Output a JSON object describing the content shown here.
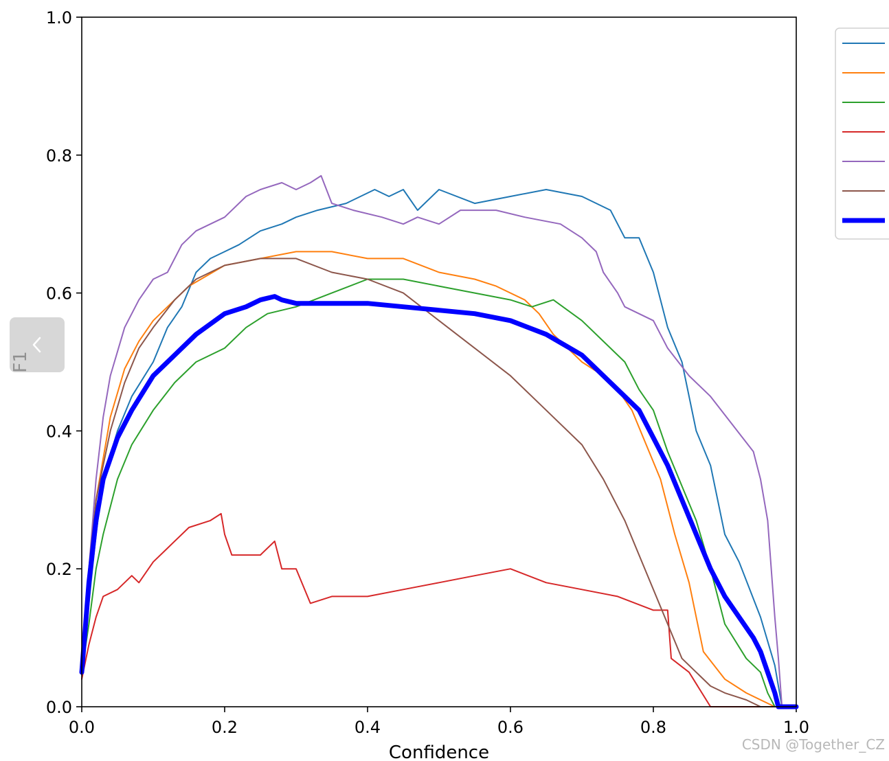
{
  "chart_data": {
    "type": "line",
    "title": "",
    "xlabel": "Confidence",
    "ylabel": "F1",
    "xlim": [
      0,
      1
    ],
    "ylim": [
      0,
      1
    ],
    "xticks": [
      "0.0",
      "0.2",
      "0.4",
      "0.6",
      "0.8",
      "1.0"
    ],
    "yticks": [
      "0.0",
      "0.2",
      "0.4",
      "0.6",
      "0.8",
      "1.0"
    ],
    "grid": false,
    "legend": "right, outside plot, partially cropped",
    "series": [
      {
        "color": "#1f77b4",
        "width": 2,
        "points": [
          [
            0,
            0.05
          ],
          [
            0.01,
            0.15
          ],
          [
            0.02,
            0.25
          ],
          [
            0.03,
            0.33
          ],
          [
            0.05,
            0.4
          ],
          [
            0.07,
            0.45
          ],
          [
            0.1,
            0.5
          ],
          [
            0.12,
            0.55
          ],
          [
            0.14,
            0.58
          ],
          [
            0.16,
            0.63
          ],
          [
            0.18,
            0.65
          ],
          [
            0.2,
            0.66
          ],
          [
            0.22,
            0.67
          ],
          [
            0.25,
            0.69
          ],
          [
            0.28,
            0.7
          ],
          [
            0.3,
            0.71
          ],
          [
            0.33,
            0.72
          ],
          [
            0.37,
            0.73
          ],
          [
            0.41,
            0.75
          ],
          [
            0.43,
            0.74
          ],
          [
            0.45,
            0.75
          ],
          [
            0.47,
            0.72
          ],
          [
            0.5,
            0.75
          ],
          [
            0.55,
            0.73
          ],
          [
            0.6,
            0.74
          ],
          [
            0.65,
            0.75
          ],
          [
            0.7,
            0.74
          ],
          [
            0.74,
            0.72
          ],
          [
            0.76,
            0.68
          ],
          [
            0.78,
            0.68
          ],
          [
            0.8,
            0.63
          ],
          [
            0.82,
            0.55
          ],
          [
            0.84,
            0.5
          ],
          [
            0.86,
            0.4
          ],
          [
            0.88,
            0.35
          ],
          [
            0.9,
            0.25
          ],
          [
            0.92,
            0.21
          ],
          [
            0.95,
            0.13
          ],
          [
            0.97,
            0.06
          ],
          [
            0.98,
            0
          ],
          [
            1,
            0
          ]
        ]
      },
      {
        "color": "#ff7f0e",
        "width": 2,
        "points": [
          [
            0,
            0.05
          ],
          [
            0.01,
            0.18
          ],
          [
            0.02,
            0.3
          ],
          [
            0.04,
            0.42
          ],
          [
            0.06,
            0.49
          ],
          [
            0.08,
            0.53
          ],
          [
            0.1,
            0.56
          ],
          [
            0.12,
            0.58
          ],
          [
            0.15,
            0.61
          ],
          [
            0.2,
            0.64
          ],
          [
            0.25,
            0.65
          ],
          [
            0.3,
            0.66
          ],
          [
            0.35,
            0.66
          ],
          [
            0.4,
            0.65
          ],
          [
            0.45,
            0.65
          ],
          [
            0.5,
            0.63
          ],
          [
            0.55,
            0.62
          ],
          [
            0.58,
            0.61
          ],
          [
            0.62,
            0.59
          ],
          [
            0.64,
            0.57
          ],
          [
            0.66,
            0.54
          ],
          [
            0.7,
            0.5
          ],
          [
            0.73,
            0.48
          ],
          [
            0.75,
            0.46
          ],
          [
            0.77,
            0.43
          ],
          [
            0.79,
            0.38
          ],
          [
            0.81,
            0.33
          ],
          [
            0.83,
            0.25
          ],
          [
            0.85,
            0.18
          ],
          [
            0.87,
            0.08
          ],
          [
            0.9,
            0.04
          ],
          [
            0.93,
            0.02
          ],
          [
            0.95,
            0.01
          ],
          [
            0.97,
            0
          ],
          [
            1,
            0
          ]
        ]
      },
      {
        "color": "#2ca02c",
        "width": 2,
        "points": [
          [
            0,
            0.05
          ],
          [
            0.01,
            0.12
          ],
          [
            0.02,
            0.2
          ],
          [
            0.03,
            0.25
          ],
          [
            0.05,
            0.33
          ],
          [
            0.07,
            0.38
          ],
          [
            0.1,
            0.43
          ],
          [
            0.13,
            0.47
          ],
          [
            0.16,
            0.5
          ],
          [
            0.2,
            0.52
          ],
          [
            0.23,
            0.55
          ],
          [
            0.26,
            0.57
          ],
          [
            0.3,
            0.58
          ],
          [
            0.35,
            0.6
          ],
          [
            0.4,
            0.62
          ],
          [
            0.45,
            0.62
          ],
          [
            0.5,
            0.61
          ],
          [
            0.55,
            0.6
          ],
          [
            0.6,
            0.59
          ],
          [
            0.63,
            0.58
          ],
          [
            0.66,
            0.59
          ],
          [
            0.7,
            0.56
          ],
          [
            0.73,
            0.53
          ],
          [
            0.76,
            0.5
          ],
          [
            0.78,
            0.46
          ],
          [
            0.8,
            0.43
          ],
          [
            0.82,
            0.37
          ],
          [
            0.84,
            0.32
          ],
          [
            0.86,
            0.27
          ],
          [
            0.88,
            0.2
          ],
          [
            0.9,
            0.12
          ],
          [
            0.93,
            0.07
          ],
          [
            0.95,
            0.05
          ],
          [
            0.96,
            0.02
          ],
          [
            0.97,
            0
          ],
          [
            1,
            0
          ]
        ]
      },
      {
        "color": "#d62728",
        "width": 2,
        "points": [
          [
            0,
            0.04
          ],
          [
            0.01,
            0.09
          ],
          [
            0.02,
            0.13
          ],
          [
            0.03,
            0.16
          ],
          [
            0.05,
            0.17
          ],
          [
            0.07,
            0.19
          ],
          [
            0.08,
            0.18
          ],
          [
            0.1,
            0.21
          ],
          [
            0.12,
            0.23
          ],
          [
            0.15,
            0.26
          ],
          [
            0.18,
            0.27
          ],
          [
            0.195,
            0.28
          ],
          [
            0.2,
            0.25
          ],
          [
            0.21,
            0.22
          ],
          [
            0.22,
            0.22
          ],
          [
            0.25,
            0.22
          ],
          [
            0.27,
            0.24
          ],
          [
            0.28,
            0.2
          ],
          [
            0.3,
            0.2
          ],
          [
            0.32,
            0.15
          ],
          [
            0.35,
            0.16
          ],
          [
            0.4,
            0.16
          ],
          [
            0.45,
            0.17
          ],
          [
            0.5,
            0.18
          ],
          [
            0.55,
            0.19
          ],
          [
            0.6,
            0.2
          ],
          [
            0.65,
            0.18
          ],
          [
            0.7,
            0.17
          ],
          [
            0.75,
            0.16
          ],
          [
            0.8,
            0.14
          ],
          [
            0.82,
            0.14
          ],
          [
            0.825,
            0.07
          ],
          [
            0.85,
            0.05
          ],
          [
            0.88,
            0
          ],
          [
            1,
            0
          ]
        ]
      },
      {
        "color": "#9467bd",
        "width": 2,
        "points": [
          [
            0,
            0.06
          ],
          [
            0.01,
            0.2
          ],
          [
            0.02,
            0.33
          ],
          [
            0.03,
            0.42
          ],
          [
            0.04,
            0.48
          ],
          [
            0.06,
            0.55
          ],
          [
            0.08,
            0.59
          ],
          [
            0.1,
            0.62
          ],
          [
            0.12,
            0.63
          ],
          [
            0.14,
            0.67
          ],
          [
            0.16,
            0.69
          ],
          [
            0.2,
            0.71
          ],
          [
            0.23,
            0.74
          ],
          [
            0.25,
            0.75
          ],
          [
            0.28,
            0.76
          ],
          [
            0.3,
            0.75
          ],
          [
            0.32,
            0.76
          ],
          [
            0.335,
            0.77
          ],
          [
            0.35,
            0.73
          ],
          [
            0.38,
            0.72
          ],
          [
            0.42,
            0.71
          ],
          [
            0.45,
            0.7
          ],
          [
            0.47,
            0.71
          ],
          [
            0.5,
            0.7
          ],
          [
            0.53,
            0.72
          ],
          [
            0.58,
            0.72
          ],
          [
            0.62,
            0.71
          ],
          [
            0.67,
            0.7
          ],
          [
            0.7,
            0.68
          ],
          [
            0.72,
            0.66
          ],
          [
            0.73,
            0.63
          ],
          [
            0.75,
            0.6
          ],
          [
            0.76,
            0.58
          ],
          [
            0.8,
            0.56
          ],
          [
            0.82,
            0.52
          ],
          [
            0.85,
            0.48
          ],
          [
            0.88,
            0.45
          ],
          [
            0.91,
            0.41
          ],
          [
            0.94,
            0.37
          ],
          [
            0.95,
            0.33
          ],
          [
            0.96,
            0.27
          ],
          [
            0.965,
            0.2
          ],
          [
            0.97,
            0.13
          ],
          [
            0.975,
            0.07
          ],
          [
            0.98,
            0
          ],
          [
            1,
            0
          ]
        ]
      },
      {
        "color": "#8c564b",
        "width": 2,
        "points": [
          [
            0,
            0.06
          ],
          [
            0.01,
            0.2
          ],
          [
            0.02,
            0.3
          ],
          [
            0.04,
            0.4
          ],
          [
            0.06,
            0.47
          ],
          [
            0.08,
            0.52
          ],
          [
            0.1,
            0.55
          ],
          [
            0.13,
            0.59
          ],
          [
            0.16,
            0.62
          ],
          [
            0.2,
            0.64
          ],
          [
            0.25,
            0.65
          ],
          [
            0.3,
            0.65
          ],
          [
            0.35,
            0.63
          ],
          [
            0.4,
            0.62
          ],
          [
            0.45,
            0.6
          ],
          [
            0.5,
            0.56
          ],
          [
            0.55,
            0.52
          ],
          [
            0.6,
            0.48
          ],
          [
            0.63,
            0.45
          ],
          [
            0.66,
            0.42
          ],
          [
            0.7,
            0.38
          ],
          [
            0.73,
            0.33
          ],
          [
            0.76,
            0.27
          ],
          [
            0.78,
            0.22
          ],
          [
            0.8,
            0.17
          ],
          [
            0.82,
            0.12
          ],
          [
            0.84,
            0.07
          ],
          [
            0.86,
            0.05
          ],
          [
            0.88,
            0.03
          ],
          [
            0.9,
            0.02
          ],
          [
            0.93,
            0.01
          ],
          [
            0.95,
            0
          ],
          [
            1,
            0
          ]
        ]
      },
      {
        "color": "#0000ff",
        "width": 7,
        "points": [
          [
            0,
            0.05
          ],
          [
            0.01,
            0.18
          ],
          [
            0.02,
            0.27
          ],
          [
            0.03,
            0.33
          ],
          [
            0.05,
            0.39
          ],
          [
            0.07,
            0.43
          ],
          [
            0.1,
            0.48
          ],
          [
            0.13,
            0.51
          ],
          [
            0.16,
            0.54
          ],
          [
            0.2,
            0.57
          ],
          [
            0.23,
            0.58
          ],
          [
            0.25,
            0.59
          ],
          [
            0.27,
            0.595
          ],
          [
            0.28,
            0.59
          ],
          [
            0.3,
            0.585
          ],
          [
            0.33,
            0.585
          ],
          [
            0.36,
            0.585
          ],
          [
            0.4,
            0.585
          ],
          [
            0.45,
            0.58
          ],
          [
            0.5,
            0.575
          ],
          [
            0.55,
            0.57
          ],
          [
            0.6,
            0.56
          ],
          [
            0.65,
            0.54
          ],
          [
            0.7,
            0.51
          ],
          [
            0.72,
            0.49
          ],
          [
            0.75,
            0.46
          ],
          [
            0.78,
            0.43
          ],
          [
            0.8,
            0.39
          ],
          [
            0.82,
            0.35
          ],
          [
            0.84,
            0.3
          ],
          [
            0.86,
            0.25
          ],
          [
            0.88,
            0.2
          ],
          [
            0.9,
            0.16
          ],
          [
            0.92,
            0.13
          ],
          [
            0.94,
            0.1
          ],
          [
            0.95,
            0.08
          ],
          [
            0.96,
            0.05
          ],
          [
            0.97,
            0.02
          ],
          [
            0.975,
            0
          ],
          [
            1,
            0
          ]
        ]
      }
    ]
  },
  "watermark": "CSDN @Together_CZ",
  "nav": {
    "icon": "chevron-left-icon"
  }
}
